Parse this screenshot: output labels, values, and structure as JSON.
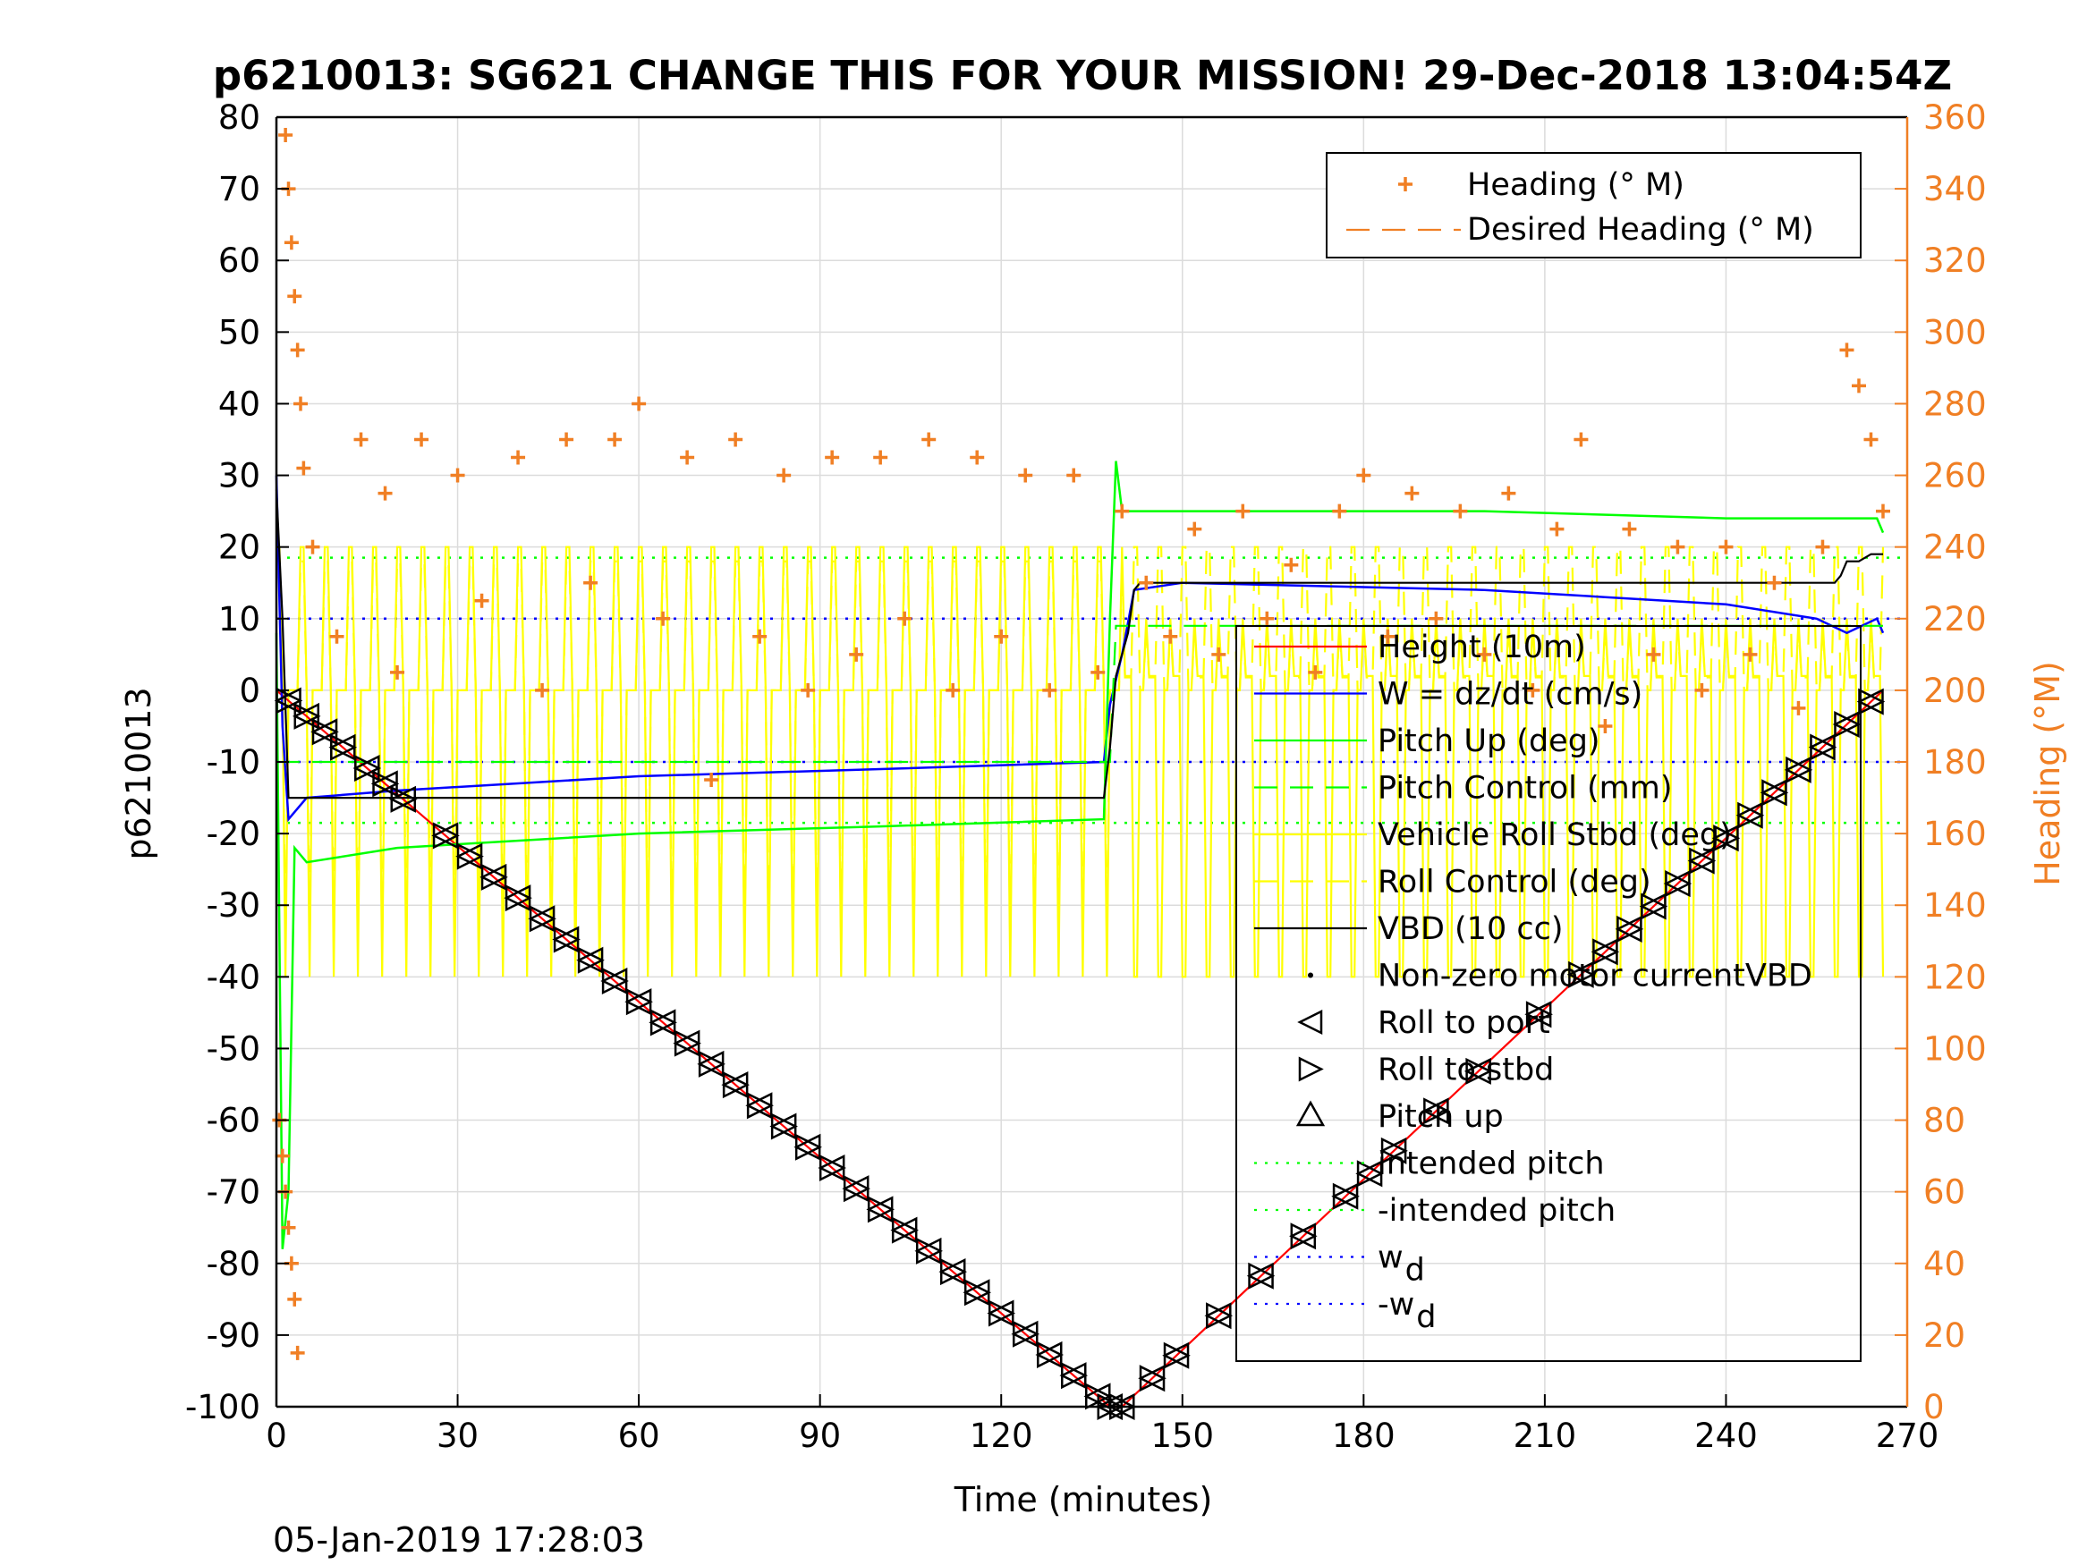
{
  "chart_data": {
    "type": "line",
    "title": "p6210013: SG621 CHANGE THIS FOR YOUR MISSION! 29-Dec-2018 13:04:54Z",
    "xlabel": "Time (minutes)",
    "ylabel": "p6210013",
    "ylabel_right": "Heading (°M)",
    "footer": "05-Jan-2019 17:28:03",
    "xlim": [
      0,
      270
    ],
    "ylim": [
      -100,
      80
    ],
    "ylim_right": [
      0,
      360
    ],
    "x_ticks": [
      "0",
      "30",
      "60",
      "90",
      "120",
      "150",
      "180",
      "210",
      "240",
      "270"
    ],
    "y_ticks": [
      "80",
      "70",
      "60",
      "50",
      "40",
      "30",
      "20",
      "10",
      "0",
      "-10",
      "-20",
      "-30",
      "-40",
      "-50",
      "-60",
      "-70",
      "-80",
      "-90",
      "-100"
    ],
    "y_ticks_right": [
      "360",
      "340",
      "320",
      "300",
      "280",
      "260",
      "240",
      "220",
      "200",
      "180",
      "160",
      "140",
      "120",
      "100",
      "80",
      "60",
      "40",
      "20",
      "0"
    ],
    "grid": true,
    "legend_top": {
      "placement": "top-right",
      "entries": [
        "Heading (° M)",
        "Desired Heading (° M)"
      ]
    },
    "legend_main": {
      "placement": "right",
      "entries": [
        "Height (10m)",
        "W = dz/dt (cm/s)",
        "Pitch Up (deg)",
        "Pitch Control (mm)",
        "Vehicle Roll Stbd (deg)",
        "Roll Control (deg)",
        "VBD (10 cc)",
        "Non-zero motor currentVBD",
        "Roll to port",
        "Roll to stbd",
        "Pitch up",
        "intended pitch",
        "-intended pitch",
        "w",
        "-w"
      ],
      "subscript": "d"
    },
    "colors": {
      "height": "#ff0000",
      "w": "#0000ff",
      "pitch": "#00ff00",
      "roll": "#ffff00",
      "vbd": "#000000",
      "heading": "#f07f24"
    },
    "series": [
      {
        "name": "Height (10m)",
        "x": [
          0,
          138,
          140,
          266
        ],
        "y": [
          0,
          -100,
          -100,
          0
        ]
      },
      {
        "name": "W = dz/dt (cm/s)",
        "x": [
          0,
          1,
          2,
          5,
          20,
          60,
          100,
          137,
          138,
          140,
          142,
          150,
          200,
          220,
          240,
          255,
          260,
          265,
          266
        ],
        "y": [
          30,
          -5,
          -18,
          -15,
          -14,
          -12,
          -11,
          -10,
          -2,
          5,
          14,
          15,
          14,
          13,
          12,
          10,
          8,
          10,
          8
        ]
      },
      {
        "name": "Pitch Up (deg)",
        "x": [
          0,
          1,
          2,
          3,
          5,
          20,
          60,
          100,
          137,
          138,
          139,
          140,
          160,
          200,
          240,
          265,
          266
        ],
        "y": [
          8,
          -78,
          -70,
          -22,
          -24,
          -22,
          -20,
          -19,
          -18,
          10,
          32,
          25,
          25,
          25,
          24,
          24,
          22
        ]
      },
      {
        "name": "Pitch Control (mm)",
        "x": [
          0,
          138,
          139,
          266
        ],
        "y": [
          -10,
          -10,
          9,
          9
        ]
      },
      {
        "name": "VBD (10 cc)",
        "x": [
          0,
          1,
          2,
          137,
          138,
          139,
          141,
          142,
          143,
          258,
          259,
          260,
          262,
          264,
          266
        ],
        "y": [
          28,
          10,
          -15,
          -15,
          -8,
          2,
          8,
          14,
          15,
          15,
          16,
          18,
          18,
          19,
          19
        ]
      }
    ],
    "intended_pitch": 18.5,
    "w_d": 10,
    "height_markers_x": [
      2,
      5,
      8,
      11,
      15,
      18,
      21,
      28,
      32,
      36,
      40,
      44,
      48,
      52,
      56,
      60,
      64,
      68,
      72,
      76,
      80,
      84,
      88,
      92,
      96,
      100,
      104,
      108,
      112,
      116,
      120,
      124,
      128,
      132,
      136,
      138,
      140,
      145,
      149,
      156,
      163,
      170,
      177,
      181,
      185,
      192,
      199,
      209,
      216,
      220,
      224,
      228,
      232,
      236,
      240,
      244,
      248,
      252,
      256,
      260,
      264
    ],
    "heading_points": [
      [
        1.5,
        355
      ],
      [
        2,
        340
      ],
      [
        2.5,
        325
      ],
      [
        3,
        310
      ],
      [
        3.5,
        295
      ],
      [
        4,
        280
      ],
      [
        4.5,
        262
      ],
      [
        0.5,
        80
      ],
      [
        1,
        70
      ],
      [
        1.5,
        60
      ],
      [
        2,
        50
      ],
      [
        2.5,
        40
      ],
      [
        3,
        30
      ],
      [
        3.5,
        15
      ],
      [
        6,
        240
      ],
      [
        10,
        215
      ],
      [
        14,
        270
      ],
      [
        18,
        255
      ],
      [
        20,
        205
      ],
      [
        24,
        270
      ],
      [
        30,
        260
      ],
      [
        34,
        225
      ],
      [
        40,
        265
      ],
      [
        44,
        200
      ],
      [
        48,
        270
      ],
      [
        52,
        230
      ],
      [
        56,
        270
      ],
      [
        60,
        280
      ],
      [
        64,
        220
      ],
      [
        68,
        265
      ],
      [
        72,
        175
      ],
      [
        76,
        270
      ],
      [
        80,
        215
      ],
      [
        84,
        260
      ],
      [
        88,
        200
      ],
      [
        92,
        265
      ],
      [
        96,
        210
      ],
      [
        100,
        265
      ],
      [
        104,
        220
      ],
      [
        108,
        270
      ],
      [
        112,
        200
      ],
      [
        116,
        265
      ],
      [
        120,
        215
      ],
      [
        124,
        260
      ],
      [
        128,
        200
      ],
      [
        132,
        260
      ],
      [
        136,
        205
      ],
      [
        140,
        250
      ],
      [
        144,
        230
      ],
      [
        148,
        215
      ],
      [
        152,
        245
      ],
      [
        156,
        210
      ],
      [
        160,
        250
      ],
      [
        164,
        220
      ],
      [
        168,
        235
      ],
      [
        172,
        205
      ],
      [
        176,
        250
      ],
      [
        180,
        260
      ],
      [
        184,
        215
      ],
      [
        188,
        255
      ],
      [
        192,
        220
      ],
      [
        196,
        250
      ],
      [
        200,
        210
      ],
      [
        204,
        255
      ],
      [
        208,
        200
      ],
      [
        212,
        245
      ],
      [
        216,
        270
      ],
      [
        220,
        190
      ],
      [
        224,
        245
      ],
      [
        228,
        210
      ],
      [
        232,
        240
      ],
      [
        236,
        200
      ],
      [
        240,
        240
      ],
      [
        244,
        210
      ],
      [
        248,
        230
      ],
      [
        252,
        195
      ],
      [
        256,
        240
      ],
      [
        260,
        295
      ],
      [
        262,
        285
      ],
      [
        264,
        270
      ],
      [
        266,
        250
      ]
    ]
  }
}
